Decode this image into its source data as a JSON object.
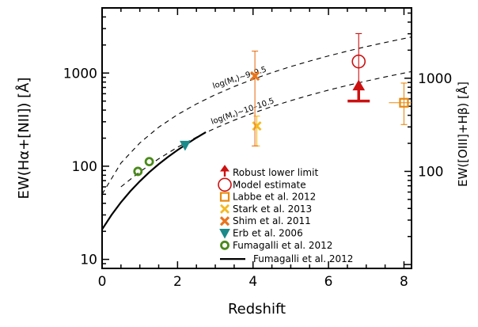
{
  "chart_data": {
    "type": "scatter",
    "xlabel": "Redshift",
    "ylabel_left": "EW(Hα+[NII]) [Å]",
    "ylabel_right": "EW([OIII]+Hβ) [Å]",
    "xlim": [
      0,
      8.2
    ],
    "ylim": [
      8,
      5000
    ],
    "yscale": "log",
    "x_ticks": [
      0,
      2,
      4,
      6,
      8
    ],
    "y_ticks_left": [
      10,
      100,
      1000
    ],
    "y_ticks_left_labels": [
      "10",
      "100",
      "1000"
    ],
    "y_ticks_right": [
      100,
      1000
    ],
    "y_ticks_right_labels": [
      "100",
      "1000"
    ],
    "right_axis_note": "right axis is offset relative to left axis",
    "grid": false,
    "legend_position": "lower-right",
    "series": [
      {
        "name": "Robust lower limit",
        "marker": "up-arrow",
        "color": "#cc1111",
        "points": [
          {
            "x": 6.8,
            "y": 500
          }
        ]
      },
      {
        "name": "Model estimate",
        "marker": "open-circle",
        "color": "#cc1111",
        "points": [
          {
            "x": 6.8,
            "y": 1330,
            "ylow": 500,
            "yhigh": 2650
          }
        ]
      },
      {
        "name": "Labbe et al. 2012",
        "marker": "open-square",
        "color": "#e88a11",
        "points": [
          {
            "x": 8.0,
            "y": 480,
            "ylow": 280,
            "yhigh": 780,
            "xlow": 7.6,
            "xhigh": 8.3
          }
        ]
      },
      {
        "name": "Stark et al. 2013",
        "marker": "x",
        "color": "#f5b921",
        "points": [
          {
            "x": 4.1,
            "y": 270,
            "ylow": 165,
            "yhigh": 345
          }
        ]
      },
      {
        "name": "Shim et al. 2011",
        "marker": "filled-x",
        "color": "#e8741c",
        "points": [
          {
            "x": 4.05,
            "y": 930,
            "ylow": 165,
            "yhigh": 1720
          }
        ]
      },
      {
        "name": "Erb et al. 2006",
        "marker": "down-triangle",
        "color": "#1a8a8a",
        "points": [
          {
            "x": 2.2,
            "y": 168
          }
        ]
      },
      {
        "name": "Fumagalli et al. 2012",
        "marker": "open-circle-thick",
        "color": "#4a8a1a",
        "points": [
          {
            "x": 0.95,
            "y": 88
          },
          {
            "x": 1.25,
            "y": 112
          }
        ]
      }
    ],
    "curves": [
      {
        "name": "Fumagalli et al. 2012",
        "style": "solid",
        "x": [
          0,
          0.25,
          0.5,
          0.75,
          1.0,
          1.25,
          1.5,
          1.75,
          2.0,
          2.25,
          2.5,
          2.75
        ],
        "y": [
          21,
          30,
          41,
          54,
          69,
          86,
          105,
          126,
          149,
          174,
          202,
          232
        ]
      },
      {
        "name": "log(M*)~9-9.5",
        "style": "dashed",
        "x": [
          0,
          0.5,
          1,
          1.5,
          2,
          2.5,
          3,
          3.5,
          4,
          4.5,
          5,
          5.5,
          6,
          6.5,
          7,
          7.5,
          8,
          8.2
        ],
        "y": [
          50,
          108,
          178,
          262,
          358,
          466,
          586,
          717,
          858,
          1010,
          1173,
          1345,
          1527,
          1718,
          1919,
          2128,
          2346,
          2436
        ]
      },
      {
        "name": "log(M*)~10-10.5",
        "style": "dashed",
        "x": [
          0.5,
          1,
          1.5,
          2,
          2.5,
          3,
          3.5,
          4,
          4.5,
          5,
          5.5,
          6,
          6.5,
          7,
          7.5,
          8,
          8.2
        ],
        "y": [
          60,
          87,
          120,
          160,
          205,
          256,
          312,
          372,
          437,
          506,
          579,
          656,
          736,
          820,
          908,
          1000,
          1037
        ]
      }
    ],
    "annotations": [
      {
        "text_main": "log(M",
        "text_sub": "*",
        "text_rest": ")~9–9.5"
      },
      {
        "text_main": "log(M",
        "text_sub": "*",
        "text_rest": ")~10–10.5"
      }
    ]
  }
}
